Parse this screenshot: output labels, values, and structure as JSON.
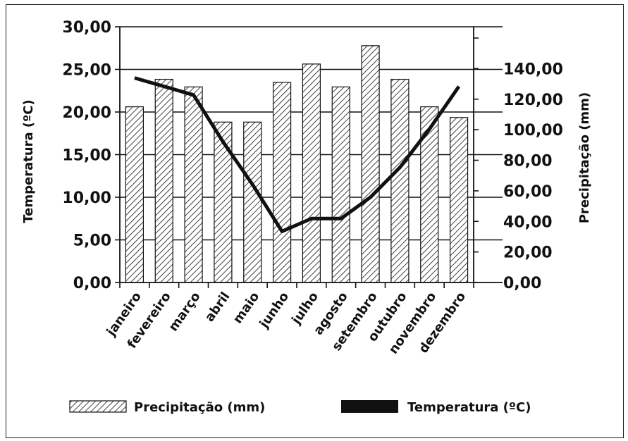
{
  "chart_data": {
    "type": "bar",
    "categories": [
      "janeiro",
      "fevereiro",
      "março",
      "abril",
      "maio",
      "junho",
      "julho",
      "agosto",
      "setembro",
      "outubro",
      "novembro",
      "dezembro"
    ],
    "series": [
      {
        "name": "Precipitação (mm)",
        "type": "bar",
        "axis": "right",
        "values": [
          115,
          133,
          128,
          105,
          105,
          131,
          143,
          128,
          155,
          133,
          115,
          108
        ]
      },
      {
        "name": "Temperatura (ºC)",
        "type": "line",
        "axis": "left",
        "values": [
          24.0,
          23.0,
          22.0,
          16.5,
          11.5,
          6.0,
          7.5,
          7.5,
          10.0,
          13.5,
          18.0,
          23.0
        ]
      }
    ],
    "ylabel_left": "Temperatura (ºC)",
    "ylabel_right": "Precipitação (mm)",
    "ylim_left": [
      0,
      30
    ],
    "ylim_right": [
      0,
      160
    ],
    "yticks_left": [
      "0,00",
      "5,00",
      "10,00",
      "15,00",
      "20,00",
      "25,00",
      "30,00"
    ],
    "yticks_right": [
      "0,00",
      "20,00",
      "40,00",
      "60,00",
      "80,00",
      "100,00",
      "120,00",
      "140,00"
    ],
    "grid": "horizontal",
    "legend_position": "bottom",
    "legend": {
      "bar_label": "Precipitação (mm)",
      "line_label": "Temperatura (ºC)"
    },
    "colors": {
      "ink": "#111111",
      "bar_fill": "#ffffff",
      "hatch": "#111111"
    }
  }
}
